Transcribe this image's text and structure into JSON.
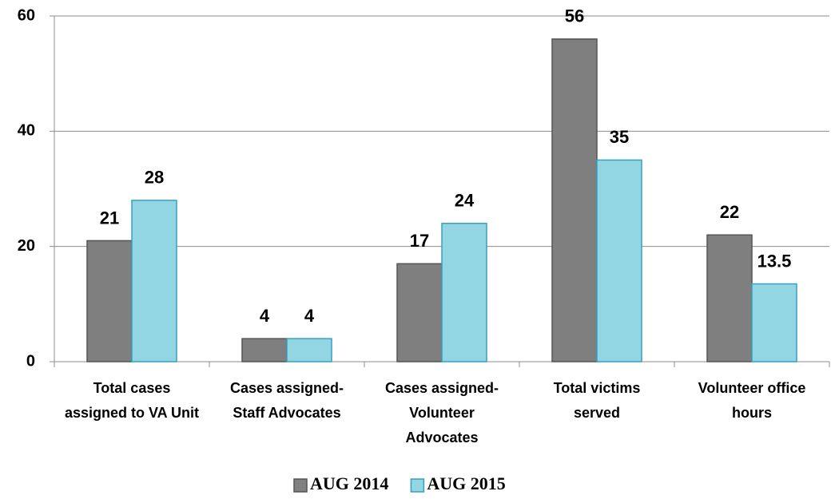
{
  "chart_data": {
    "type": "bar",
    "categories": [
      "Total cases assigned to VA Unit",
      "Cases assigned-Staff Advocates",
      "Cases assigned-Volunteer Advocates",
      "Total victims served",
      "Volunteer office hours"
    ],
    "series": [
      {
        "name": "AUG 2014",
        "color": "#7f7f7f",
        "values": [
          21,
          4,
          17,
          56,
          22
        ]
      },
      {
        "name": "AUG 2015",
        "color": "#92d5e3",
        "values": [
          28,
          4,
          24,
          35,
          13.5
        ]
      }
    ],
    "ylim": [
      0,
      60
    ],
    "yticks": [
      0,
      20,
      40,
      60
    ],
    "grid": true,
    "legend": "bottom"
  }
}
